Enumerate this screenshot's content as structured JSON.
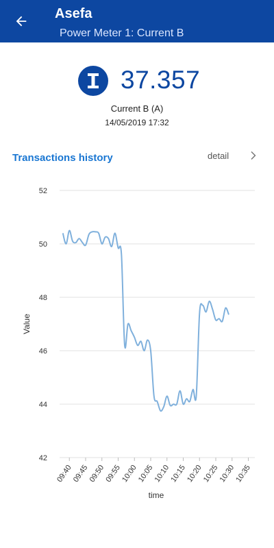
{
  "appbar": {
    "back_icon": "arrow-left-icon",
    "title": "Asefa",
    "subtitle": "Power Meter 1: Current B"
  },
  "reading": {
    "badge_icon": "current-i-icon",
    "badge_letter": "I",
    "value": "37.357",
    "label": "Current B (A)",
    "timestamp": "14/05/2019 17:32"
  },
  "history": {
    "title": "Transactions history",
    "detail_label": "detail",
    "detail_icon": "chevron-right-icon"
  },
  "colors": {
    "appbar": "#0d47a1",
    "accent": "#1976d2",
    "line": "#7fb0dc"
  },
  "chart_data": {
    "type": "line",
    "xlabel": "time",
    "ylabel": "Value",
    "ylim": [
      42,
      52
    ],
    "yticks": [
      42,
      44,
      46,
      48,
      50,
      52
    ],
    "xlim": [
      "09:37",
      "10:37"
    ],
    "xticks": [
      "09:40",
      "09:45",
      "09:50",
      "09:55",
      "10:00",
      "10:05",
      "10:10",
      "10:15",
      "10:20",
      "10:25",
      "10:30",
      "10:35"
    ],
    "grid": true,
    "series": [
      {
        "values": [
          [
            "09:38",
            50.4
          ],
          [
            "09:39",
            50.0
          ],
          [
            "09:40",
            50.5
          ],
          [
            "09:41",
            50.1
          ],
          [
            "09:42",
            50.05
          ],
          [
            "09:43",
            50.2
          ],
          [
            "09:44",
            50.05
          ],
          [
            "09:45",
            49.95
          ],
          [
            "09:46",
            50.35
          ],
          [
            "09:47",
            50.45
          ],
          [
            "09:48",
            50.45
          ],
          [
            "09:49",
            50.4
          ],
          [
            "09:50",
            50.0
          ],
          [
            "09:51",
            50.25
          ],
          [
            "09:52",
            50.2
          ],
          [
            "09:53",
            49.9
          ],
          [
            "09:54",
            50.4
          ],
          [
            "09:55",
            49.85
          ],
          [
            "09:56",
            49.6
          ],
          [
            "09:57",
            46.2
          ],
          [
            "09:58",
            47.0
          ],
          [
            "09:59",
            46.75
          ],
          [
            "10:00",
            46.5
          ],
          [
            "10:01",
            46.2
          ],
          [
            "10:02",
            46.35
          ],
          [
            "10:03",
            46.0
          ],
          [
            "10:04",
            46.4
          ],
          [
            "10:05",
            46.0
          ],
          [
            "10:06",
            44.3
          ],
          [
            "10:07",
            44.1
          ],
          [
            "10:08",
            43.75
          ],
          [
            "10:09",
            43.9
          ],
          [
            "10:10",
            44.3
          ],
          [
            "10:11",
            43.95
          ],
          [
            "10:12",
            44.0
          ],
          [
            "10:13",
            44.0
          ],
          [
            "10:14",
            44.5
          ],
          [
            "10:15",
            44.0
          ],
          [
            "10:16",
            44.2
          ],
          [
            "10:17",
            44.1
          ],
          [
            "10:18",
            44.55
          ],
          [
            "10:19",
            44.3
          ],
          [
            "10:20",
            47.4
          ],
          [
            "10:21",
            47.7
          ],
          [
            "10:22",
            47.45
          ],
          [
            "10:23",
            47.85
          ],
          [
            "10:24",
            47.55
          ],
          [
            "10:25",
            47.15
          ],
          [
            "10:26",
            47.2
          ],
          [
            "10:27",
            47.1
          ],
          [
            "10:28",
            47.6
          ],
          [
            "10:29",
            47.35
          ]
        ]
      }
    ]
  }
}
